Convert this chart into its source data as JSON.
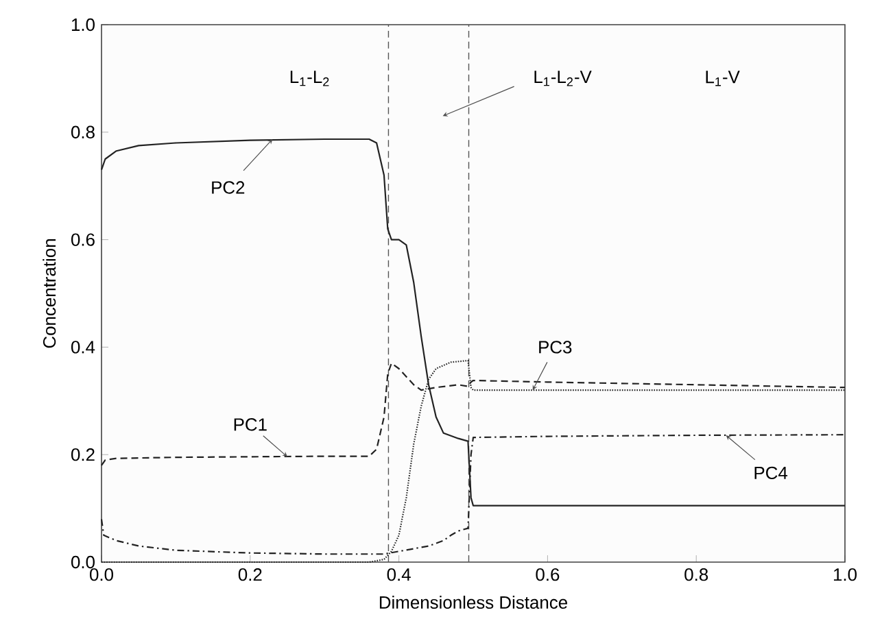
{
  "chart_data": {
    "type": "line",
    "xlabel": "Dimensionless Distance",
    "ylabel": "Concentration",
    "xlim": [
      0,
      1
    ],
    "ylim": [
      0,
      1
    ],
    "xticks": [
      {
        "value": 0,
        "label": "0.0"
      },
      0.2,
      0.4,
      0.6,
      0.8,
      {
        "value": 1,
        "label": "1.0"
      }
    ],
    "yticks": [
      {
        "value": 0,
        "label": "0.0"
      },
      0.2,
      0.4,
      0.6,
      0.8,
      {
        "value": 1,
        "label": "1.0"
      }
    ],
    "grid": false,
    "marker": "none",
    "series": [
      {
        "color": "#222222",
        "line_style": "dashed",
        "x": [
          0,
          0.005,
          0.02,
          0.1,
          0.2,
          0.3,
          0.36,
          0.37,
          0.38,
          0.385,
          0.39,
          0.4,
          0.42,
          0.43,
          0.45,
          0.48,
          0.493,
          0.497,
          0.5,
          0.6,
          0.8,
          1.0
        ],
        "values": [
          0.18,
          0.19,
          0.193,
          0.195,
          0.196,
          0.197,
          0.197,
          0.21,
          0.27,
          0.35,
          0.37,
          0.36,
          0.33,
          0.32,
          0.325,
          0.33,
          0.327,
          0.335,
          0.338,
          0.335,
          0.33,
          0.325
        ]
      },
      {
        "color": "#222222",
        "line_style": "solid",
        "x": [
          0,
          0.005,
          0.02,
          0.05,
          0.1,
          0.2,
          0.3,
          0.36,
          0.37,
          0.38,
          0.385,
          0.39,
          0.4,
          0.41,
          0.42,
          0.43,
          0.44,
          0.45,
          0.46,
          0.48,
          0.493,
          0.497,
          0.5,
          0.6,
          0.8,
          1.0
        ],
        "values": [
          0.73,
          0.75,
          0.765,
          0.775,
          0.78,
          0.785,
          0.787,
          0.787,
          0.78,
          0.72,
          0.62,
          0.6,
          0.6,
          0.59,
          0.52,
          0.42,
          0.33,
          0.27,
          0.24,
          0.23,
          0.225,
          0.12,
          0.105,
          0.105,
          0.105,
          0.105
        ]
      },
      {
        "color": "#222222",
        "line_style": "dotted",
        "x": [
          0,
          0.2,
          0.36,
          0.38,
          0.39,
          0.4,
          0.41,
          0.42,
          0.43,
          0.44,
          0.45,
          0.47,
          0.493,
          0.497,
          0.5,
          0.6,
          0.8,
          1.0
        ],
        "values": [
          0,
          0,
          0,
          0.005,
          0.02,
          0.05,
          0.12,
          0.22,
          0.29,
          0.34,
          0.36,
          0.372,
          0.375,
          0.325,
          0.32,
          0.32,
          0.32,
          0.32
        ]
      },
      {
        "color": "#222222",
        "line_style": "dashdot",
        "x": [
          0,
          0.003,
          0.02,
          0.05,
          0.1,
          0.2,
          0.3,
          0.38,
          0.4,
          0.42,
          0.44,
          0.46,
          0.47,
          0.48,
          0.493,
          0.497,
          0.5,
          0.6,
          0.8,
          1.0
        ],
        "values": [
          0.08,
          0.05,
          0.04,
          0.03,
          0.022,
          0.017,
          0.015,
          0.015,
          0.02,
          0.025,
          0.03,
          0.04,
          0.05,
          0.058,
          0.063,
          0.2,
          0.232,
          0.234,
          0.236,
          0.237
        ]
      }
    ],
    "ref_lines": [
      {
        "axis": "x",
        "value": 0.386,
        "color": "#555555",
        "line_style": "dashed"
      },
      {
        "axis": "x",
        "value": 0.494,
        "color": "#555555",
        "line_style": "dashed"
      }
    ],
    "annotations": [
      {
        "text": "PC2",
        "x": 0.23,
        "y": 0.787
      },
      {
        "text": "PC1",
        "x": 0.25,
        "y": 0.196
      },
      {
        "text": "PC3",
        "x": 0.58,
        "y": 0.32
      },
      {
        "text": "PC4",
        "x": 0.84,
        "y": 0.236
      },
      "L$_{1}$-L$_{2}$",
      "L$_{1}$-L$_{2}$-V",
      "L$_{1}$-V"
    ]
  }
}
